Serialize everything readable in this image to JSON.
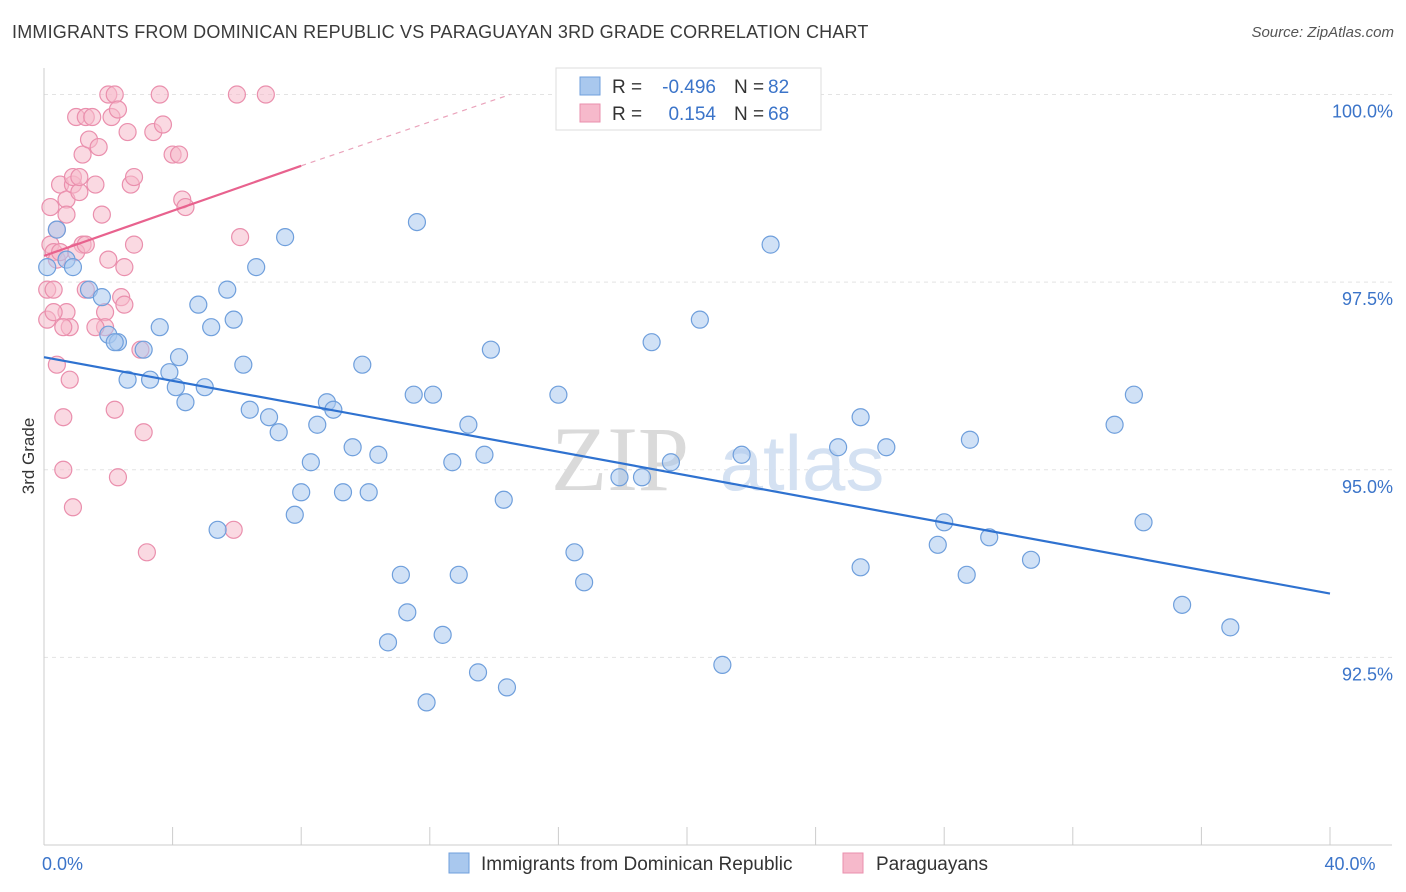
{
  "title": "IMMIGRANTS FROM DOMINICAN REPUBLIC VS PARAGUAYAN 3RD GRADE CORRELATION CHART",
  "source": "Source: ZipAtlas.com",
  "watermark": {
    "zip": "ZIP",
    "atlas": "atlas"
  },
  "chart_data": {
    "type": "scatter",
    "xlabel": "",
    "ylabel": "3rd Grade",
    "xlim": [
      0,
      40
    ],
    "ylim": [
      90.0,
      100.3
    ],
    "x_tick_labels": [
      {
        "value": 0,
        "label": "0.0%"
      },
      {
        "value": 40,
        "label": "40.0%"
      }
    ],
    "x_minor_ticks": [
      0,
      4,
      8,
      12,
      16,
      20,
      24,
      28,
      32,
      36,
      40
    ],
    "y_ticks": [
      {
        "value": 92.5,
        "label": "92.5%"
      },
      {
        "value": 95.0,
        "label": "95.0%"
      },
      {
        "value": 97.5,
        "label": "97.5%"
      },
      {
        "value": 100.0,
        "label": "100.0%"
      }
    ],
    "stats": [
      {
        "r_label": "R =",
        "r": "-0.496",
        "n_label": "N =",
        "n": "82",
        "color": "#5b8fd6"
      },
      {
        "r_label": "R =",
        "r": "0.154",
        "n_label": "N =",
        "n": "68",
        "color": "#e8789f"
      }
    ],
    "series": [
      {
        "name": "Immigrants from Dominican Republic",
        "fill": "#a9c8ee",
        "stroke": "#6f9fdc",
        "trend": {
          "x0": 0,
          "y0": 96.5,
          "x1": 40,
          "y1": 93.35,
          "color": "#2f72d0"
        },
        "points": [
          [
            0.1,
            97.7
          ],
          [
            0.4,
            98.2
          ],
          [
            0.7,
            97.8
          ],
          [
            0.9,
            97.7
          ],
          [
            1.4,
            97.4
          ],
          [
            1.8,
            97.3
          ],
          [
            2.0,
            96.8
          ],
          [
            2.3,
            96.7
          ],
          [
            2.6,
            96.2
          ],
          [
            3.1,
            96.6
          ],
          [
            3.6,
            96.9
          ],
          [
            3.9,
            96.3
          ],
          [
            4.1,
            96.1
          ],
          [
            4.2,
            96.5
          ],
          [
            4.4,
            95.9
          ],
          [
            4.8,
            97.2
          ],
          [
            5.0,
            96.1
          ],
          [
            5.2,
            96.9
          ],
          [
            5.4,
            94.2
          ],
          [
            5.7,
            97.4
          ],
          [
            5.9,
            97.0
          ],
          [
            6.2,
            96.4
          ],
          [
            6.4,
            95.8
          ],
          [
            6.6,
            97.7
          ],
          [
            7.0,
            95.7
          ],
          [
            7.3,
            95.5
          ],
          [
            7.5,
            98.1
          ],
          [
            7.8,
            94.4
          ],
          [
            8.0,
            94.7
          ],
          [
            8.3,
            95.1
          ],
          [
            8.5,
            95.6
          ],
          [
            8.8,
            95.9
          ],
          [
            9.0,
            95.8
          ],
          [
            9.3,
            94.7
          ],
          [
            9.6,
            95.3
          ],
          [
            9.9,
            96.4
          ],
          [
            10.1,
            94.7
          ],
          [
            10.4,
            95.2
          ],
          [
            10.7,
            92.7
          ],
          [
            11.1,
            93.6
          ],
          [
            11.3,
            93.1
          ],
          [
            11.5,
            96.0
          ],
          [
            11.6,
            98.3
          ],
          [
            11.9,
            91.9
          ],
          [
            12.1,
            96.0
          ],
          [
            12.4,
            92.8
          ],
          [
            12.7,
            95.1
          ],
          [
            12.9,
            93.6
          ],
          [
            13.2,
            95.6
          ],
          [
            13.5,
            92.3
          ],
          [
            13.7,
            95.2
          ],
          [
            13.9,
            96.6
          ],
          [
            14.3,
            94.6
          ],
          [
            14.4,
            92.1
          ],
          [
            16.0,
            96.0
          ],
          [
            16.5,
            93.9
          ],
          [
            16.8,
            93.5
          ],
          [
            17.9,
            94.9
          ],
          [
            18.6,
            94.9
          ],
          [
            18.9,
            96.7
          ],
          [
            19.5,
            95.1
          ],
          [
            20.4,
            97.0
          ],
          [
            21.1,
            92.4
          ],
          [
            21.7,
            95.2
          ],
          [
            22.6,
            98.0
          ],
          [
            24.7,
            95.3
          ],
          [
            25.4,
            93.7
          ],
          [
            25.4,
            95.7
          ],
          [
            26.2,
            95.3
          ],
          [
            27.8,
            94.0
          ],
          [
            28.0,
            94.3
          ],
          [
            28.7,
            93.6
          ],
          [
            28.8,
            95.4
          ],
          [
            29.4,
            94.1
          ],
          [
            30.7,
            93.8
          ],
          [
            33.3,
            95.6
          ],
          [
            33.9,
            96.0
          ],
          [
            34.2,
            94.3
          ],
          [
            35.4,
            93.2
          ],
          [
            36.9,
            92.9
          ],
          [
            2.2,
            96.7
          ],
          [
            3.3,
            96.2
          ]
        ]
      },
      {
        "name": "Paraguayans",
        "fill": "#f6b9cb",
        "stroke": "#ea8fad",
        "trend": {
          "x0": 0,
          "y0": 97.85,
          "x1": 8,
          "y1": 99.05,
          "color": "#e8628e"
        },
        "trend_ext": {
          "x0": 8,
          "y0": 99.05,
          "x1": 14.5,
          "y1": 100.0
        },
        "points": [
          [
            0.1,
            97.0
          ],
          [
            0.1,
            97.4
          ],
          [
            0.2,
            98.5
          ],
          [
            0.2,
            98.0
          ],
          [
            0.3,
            97.9
          ],
          [
            0.3,
            97.4
          ],
          [
            0.4,
            98.2
          ],
          [
            0.4,
            97.8
          ],
          [
            0.4,
            96.4
          ],
          [
            0.5,
            98.8
          ],
          [
            0.5,
            97.9
          ],
          [
            0.6,
            95.7
          ],
          [
            0.6,
            95.0
          ],
          [
            0.7,
            98.6
          ],
          [
            0.7,
            98.4
          ],
          [
            0.7,
            97.1
          ],
          [
            0.8,
            96.9
          ],
          [
            0.8,
            96.2
          ],
          [
            0.9,
            94.5
          ],
          [
            0.9,
            98.8
          ],
          [
            0.9,
            98.9
          ],
          [
            1.0,
            99.7
          ],
          [
            1.1,
            98.7
          ],
          [
            1.1,
            98.9
          ],
          [
            1.2,
            99.2
          ],
          [
            1.2,
            98.0
          ],
          [
            1.3,
            99.7
          ],
          [
            1.3,
            97.4
          ],
          [
            1.4,
            99.4
          ],
          [
            1.5,
            99.7
          ],
          [
            1.6,
            98.8
          ],
          [
            1.7,
            99.3
          ],
          [
            1.8,
            98.4
          ],
          [
            1.9,
            97.1
          ],
          [
            1.9,
            96.9
          ],
          [
            2.0,
            97.8
          ],
          [
            2.0,
            100.0
          ],
          [
            2.1,
            99.7
          ],
          [
            2.2,
            100.0
          ],
          [
            2.3,
            99.8
          ],
          [
            2.4,
            97.3
          ],
          [
            2.5,
            97.2
          ],
          [
            2.2,
            95.8
          ],
          [
            2.3,
            94.9
          ],
          [
            2.6,
            99.5
          ],
          [
            2.7,
            98.8
          ],
          [
            2.8,
            98.9
          ],
          [
            2.8,
            98.0
          ],
          [
            3.0,
            96.6
          ],
          [
            3.1,
            95.5
          ],
          [
            3.4,
            99.5
          ],
          [
            3.7,
            99.6
          ],
          [
            3.2,
            93.9
          ],
          [
            3.6,
            100.0
          ],
          [
            4.0,
            99.2
          ],
          [
            4.2,
            99.2
          ],
          [
            4.3,
            98.6
          ],
          [
            4.4,
            98.5
          ],
          [
            5.9,
            94.2
          ],
          [
            6.1,
            98.1
          ],
          [
            6.0,
            100.0
          ],
          [
            6.9,
            100.0
          ],
          [
            1.0,
            97.9
          ],
          [
            0.3,
            97.1
          ],
          [
            2.5,
            97.7
          ],
          [
            1.6,
            96.9
          ],
          [
            0.6,
            96.9
          ],
          [
            1.3,
            98.0
          ]
        ]
      }
    ],
    "legend": [
      {
        "label": "Immigrants from Dominican Republic",
        "fill": "#a9c8ee",
        "stroke": "#6f9fdc"
      },
      {
        "label": "Paraguayans",
        "fill": "#f6b9cb",
        "stroke": "#ea8fad"
      }
    ]
  }
}
